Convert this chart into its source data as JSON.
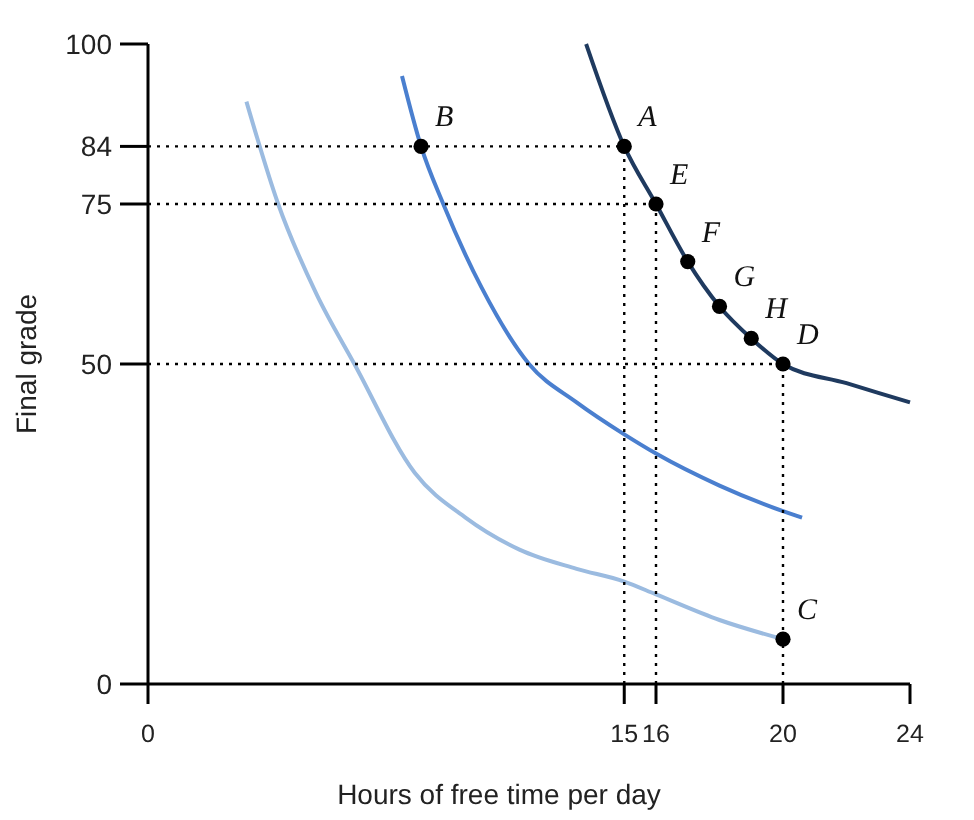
{
  "chart_data": {
    "type": "line",
    "xlabel": "Hours of free time per day",
    "ylabel": "Final grade",
    "xlim": [
      0,
      24
    ],
    "ylim": [
      0,
      100
    ],
    "xticks": [
      0,
      15,
      16,
      20,
      24
    ],
    "yticks": [
      0,
      50,
      75,
      84,
      100
    ],
    "grid": false,
    "marker": "none",
    "line_style": "solid",
    "series": [
      {
        "color": "#9bbbe0",
        "x": [
          3.1,
          4.1,
          5.3,
          6.5,
          8.4,
          10,
          11.7,
          13.5,
          15,
          16,
          18,
          20
        ],
        "values": [
          91,
          75,
          61,
          50,
          33,
          26,
          21,
          18,
          16,
          14,
          10,
          7
        ]
      },
      {
        "color": "#4a7fcf",
        "x": [
          8,
          8.6,
          9.3,
          10.5,
          12,
          13.5,
          15,
          16,
          18,
          20,
          20.6
        ],
        "values": [
          95,
          84,
          75,
          62,
          50,
          44,
          39,
          36,
          31,
          27,
          26
        ]
      },
      {
        "color": "#1f3a5f",
        "x": [
          13.8,
          15,
          16,
          17,
          18,
          19,
          20,
          22,
          24
        ],
        "values": [
          100,
          84,
          75,
          66,
          59,
          54,
          50,
          47,
          44
        ]
      },
      {
        "type": "line",
        "line_style": "dotted",
        "color": "#000000",
        "x": [
          0,
          15
        ],
        "values": [
          84,
          84
        ]
      },
      {
        "type": "line",
        "line_style": "dotted",
        "color": "#000000",
        "x": [
          0,
          16
        ],
        "values": [
          75,
          75
        ]
      },
      {
        "type": "line",
        "line_style": "dotted",
        "color": "#000000",
        "x": [
          0,
          20
        ],
        "values": [
          50,
          50
        ]
      },
      {
        "type": "line",
        "line_style": "dotted",
        "color": "#000000",
        "x": [
          15,
          15
        ],
        "values": [
          0,
          84
        ]
      },
      {
        "type": "line",
        "line_style": "dotted",
        "color": "#000000",
        "x": [
          16,
          16
        ],
        "values": [
          0,
          75
        ]
      },
      {
        "type": "line",
        "line_style": "dotted",
        "color": "#000000",
        "x": [
          20,
          20
        ],
        "values": [
          0,
          50
        ]
      },
      {
        "type": "scatter",
        "marker": "circle",
        "color": "#000000",
        "x": [
          15,
          8.6,
          20,
          20,
          16,
          17,
          18,
          19
        ],
        "values": [
          84,
          84,
          7,
          50,
          75,
          66,
          59,
          54
        ]
      }
    ],
    "annotations": [
      {
        "text": "A",
        "x": 15,
        "y": 84
      },
      {
        "text": "B",
        "x": 8.6,
        "y": 84
      },
      {
        "text": "C",
        "x": 20,
        "y": 7
      },
      {
        "text": "D",
        "x": 20,
        "y": 50
      },
      {
        "text": "E",
        "x": 16,
        "y": 75
      },
      {
        "text": "F",
        "x": 17,
        "y": 66
      },
      {
        "text": "G",
        "x": 18,
        "y": 59
      },
      {
        "text": "H",
        "x": 19,
        "y": 54
      }
    ]
  }
}
